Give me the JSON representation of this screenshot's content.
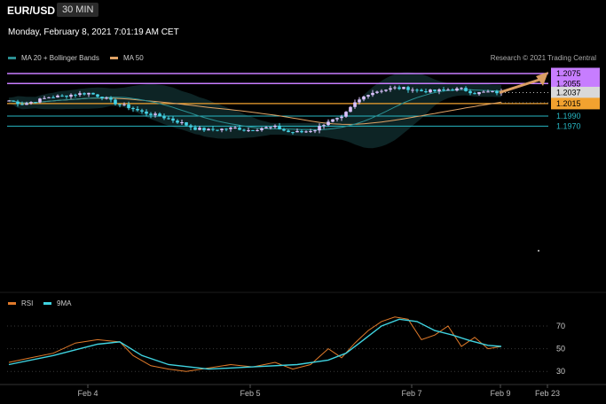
{
  "header": {
    "symbol": "EUR/USD",
    "timeframe": "30 MIN",
    "datetime": "Monday, February 8, 2021 7:01:19 AM CET"
  },
  "legend": {
    "ma20": "MA 20 + Bollinger Bands",
    "ma50": "MA 50",
    "credit": "Research © 2021 Trading Central"
  },
  "colors": {
    "background": "#000000",
    "up_candle": "#dcc3ff",
    "down_candle": "#46d3e6",
    "resistance": "#c77dff",
    "pivot": "#f2a22f",
    "support": "#27b6c2",
    "current_price": "#d9d9d9",
    "ma20": "#2b8f92",
    "ma50": "#e0a366",
    "bollinger_fill": "#0f2a2b",
    "arrow": "#d99e63",
    "rsi": "#e07a2a",
    "rsi_ma": "#3fd3e0"
  },
  "chart_data": {
    "type": "candlestick",
    "price_levels": [
      {
        "label": "1.2075",
        "value": 1.2075,
        "kind": "resistance"
      },
      {
        "label": "1.2055",
        "value": 1.2055,
        "kind": "resistance"
      },
      {
        "label": "1.2037",
        "value": 1.2037,
        "kind": "current"
      },
      {
        "label": "1.2015",
        "value": 1.2015,
        "kind": "pivot"
      },
      {
        "label": "1.1990",
        "value": 1.199,
        "kind": "support"
      },
      {
        "label": "1.1970",
        "value": 1.197,
        "kind": "support"
      }
    ],
    "x_ticks": [
      "Feb 4",
      "Feb 5",
      "Feb 7",
      "Feb 9",
      "Feb 23"
    ],
    "rsi_ticks": [
      "70",
      "50",
      "30"
    ],
    "close_path": [
      [
        0,
        1.2021
      ],
      [
        3,
        1.2014
      ],
      [
        6,
        1.202
      ],
      [
        9,
        1.2028
      ],
      [
        12,
        1.203
      ],
      [
        15,
        1.2034
      ],
      [
        18,
        1.2036
      ],
      [
        21,
        1.2028
      ],
      [
        24,
        1.2016
      ],
      [
        27,
        1.2008
      ],
      [
        30,
        1.1998
      ],
      [
        33,
        1.1992
      ],
      [
        36,
        1.1985
      ],
      [
        39,
        1.1976
      ],
      [
        42,
        1.1965
      ],
      [
        45,
        1.1962
      ],
      [
        48,
        1.1964
      ],
      [
        51,
        1.1966
      ],
      [
        54,
        1.1962
      ],
      [
        57,
        1.1966
      ],
      [
        60,
        1.1968
      ],
      [
        63,
        1.1958
      ],
      [
        66,
        1.1958
      ],
      [
        69,
        1.1963
      ],
      [
        72,
        1.198
      ],
      [
        75,
        1.1986
      ],
      [
        78,
        1.2016
      ],
      [
        81,
        1.2035
      ],
      [
        84,
        1.2042
      ],
      [
        87,
        1.2046
      ],
      [
        90,
        1.2045
      ],
      [
        93,
        1.204
      ],
      [
        96,
        1.204
      ],
      [
        99,
        1.2043
      ],
      [
        102,
        1.2044
      ],
      [
        105,
        1.2036
      ],
      [
        108,
        1.2038
      ],
      [
        111,
        1.2037
      ]
    ],
    "rsi": [
      [
        0,
        38
      ],
      [
        5,
        42
      ],
      [
        10,
        46
      ],
      [
        15,
        55
      ],
      [
        20,
        58
      ],
      [
        25,
        56
      ],
      [
        28,
        44
      ],
      [
        32,
        35
      ],
      [
        36,
        32
      ],
      [
        40,
        30
      ],
      [
        45,
        33
      ],
      [
        50,
        36
      ],
      [
        55,
        34
      ],
      [
        60,
        38
      ],
      [
        64,
        32
      ],
      [
        68,
        36
      ],
      [
        72,
        50
      ],
      [
        75,
        42
      ],
      [
        78,
        55
      ],
      [
        81,
        66
      ],
      [
        84,
        74
      ],
      [
        87,
        78
      ],
      [
        90,
        76
      ],
      [
        93,
        58
      ],
      [
        96,
        62
      ],
      [
        99,
        70
      ],
      [
        102,
        52
      ],
      [
        105,
        60
      ],
      [
        108,
        50
      ],
      [
        111,
        52
      ]
    ],
    "rsi_ma": [
      [
        0,
        36
      ],
      [
        10,
        44
      ],
      [
        20,
        54
      ],
      [
        25,
        56
      ],
      [
        30,
        44
      ],
      [
        36,
        36
      ],
      [
        45,
        32
      ],
      [
        55,
        34
      ],
      [
        65,
        36
      ],
      [
        72,
        40
      ],
      [
        76,
        46
      ],
      [
        80,
        58
      ],
      [
        84,
        70
      ],
      [
        88,
        76
      ],
      [
        92,
        74
      ],
      [
        96,
        66
      ],
      [
        100,
        62
      ],
      [
        104,
        57
      ],
      [
        108,
        53
      ],
      [
        111,
        52
      ]
    ],
    "projection": {
      "from": 1.2037,
      "to": 1.2075
    }
  }
}
